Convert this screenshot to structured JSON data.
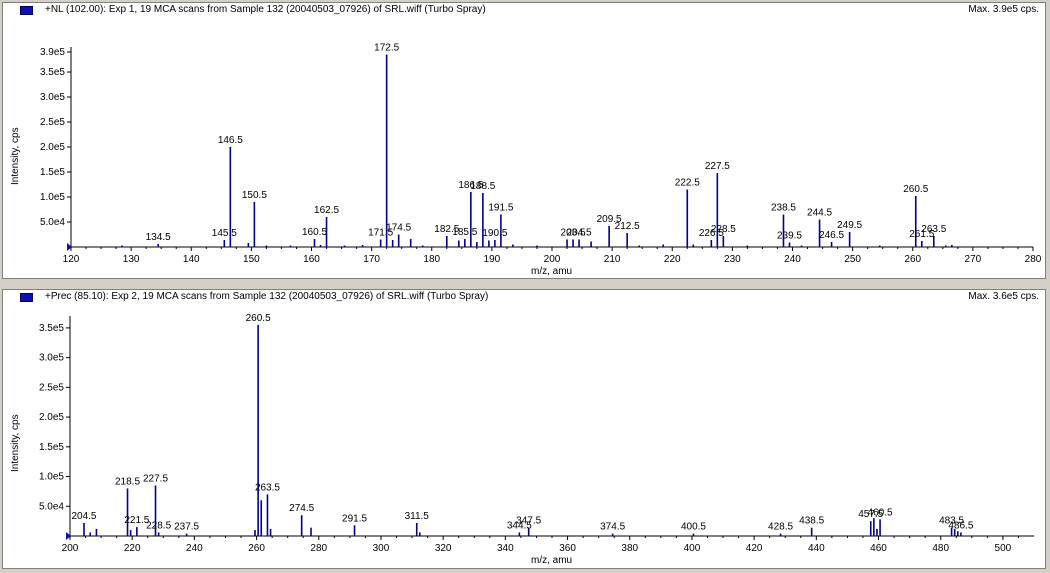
{
  "colors": {
    "bar": "#00008b",
    "axis": "#000000",
    "marker": "#1010b0"
  },
  "chart_data": [
    {
      "type": "bar",
      "title": "+NL (102.00): Exp 1, 19 MCA scans from Sample 132 (20040503_07926) of SRL.wiff (Turbo Spray)",
      "max_label": "Max. 3.9e5 cps.",
      "xlabel": "m/z, amu",
      "ylabel": "Intensity, cps",
      "xlim": [
        120,
        280
      ],
      "ylim": [
        0,
        400000
      ],
      "xticks": [
        120,
        130,
        140,
        150,
        160,
        170,
        180,
        190,
        200,
        210,
        220,
        230,
        240,
        250,
        260,
        270,
        280
      ],
      "yticks": [
        50000,
        100000,
        150000,
        200000,
        250000,
        300000,
        350000,
        390000
      ],
      "ytick_labels": [
        "5.0e4",
        "1.0e5",
        "1.5e5",
        "2.0e5",
        "2.5e5",
        "3.0e5",
        "3.5e5",
        "3.9e5"
      ],
      "peaks": [
        [
          128.5,
          3000
        ],
        [
          134.5,
          6000
        ],
        [
          145.5,
          14000
        ],
        [
          146.5,
          200000
        ],
        [
          149.5,
          8000
        ],
        [
          150.5,
          90000
        ],
        [
          152.5,
          3000
        ],
        [
          156.5,
          3000
        ],
        [
          160.5,
          16000
        ],
        [
          161.5,
          4000
        ],
        [
          162.5,
          60000
        ],
        [
          165.5,
          3000
        ],
        [
          168.5,
          4000
        ],
        [
          171.5,
          15000
        ],
        [
          172.5,
          385000
        ],
        [
          173.5,
          14000
        ],
        [
          174.5,
          25000
        ],
        [
          176.5,
          16000
        ],
        [
          178.5,
          3000
        ],
        [
          182.5,
          22000
        ],
        [
          184.5,
          13000
        ],
        [
          185.5,
          16000
        ],
        [
          186.5,
          110000
        ],
        [
          187.5,
          10000
        ],
        [
          188.5,
          108000
        ],
        [
          189.5,
          13000
        ],
        [
          190.5,
          14000
        ],
        [
          191.5,
          65000
        ],
        [
          193.5,
          5000
        ],
        [
          197.5,
          3000
        ],
        [
          202.5,
          15000
        ],
        [
          203.5,
          15000
        ],
        [
          204.5,
          15000
        ],
        [
          206.5,
          11000
        ],
        [
          209.5,
          42000
        ],
        [
          212.5,
          28000
        ],
        [
          214.5,
          3000
        ],
        [
          218.5,
          5000
        ],
        [
          222.5,
          115000
        ],
        [
          223.5,
          5000
        ],
        [
          226.5,
          14000
        ],
        [
          227.5,
          148000
        ],
        [
          228.5,
          22000
        ],
        [
          232.5,
          3000
        ],
        [
          238.5,
          65000
        ],
        [
          239.5,
          9000
        ],
        [
          241.5,
          3000
        ],
        [
          244.5,
          55000
        ],
        [
          246.5,
          10000
        ],
        [
          249.5,
          30000
        ],
        [
          254.5,
          3000
        ],
        [
          260.5,
          102000
        ],
        [
          261.5,
          12000
        ],
        [
          263.5,
          22000
        ],
        [
          265.5,
          3000
        ],
        [
          266.5,
          4000
        ]
      ],
      "labels": [
        {
          "x": 134.5,
          "text": "134.5"
        },
        {
          "x": 145.5,
          "text": "145.5"
        },
        {
          "x": 146.5,
          "text": "146.5"
        },
        {
          "x": 150.5,
          "text": "150.5"
        },
        {
          "x": 160.5,
          "text": "160.5"
        },
        {
          "x": 162.5,
          "text": "162.5"
        },
        {
          "x": 171.5,
          "text": "171.5"
        },
        {
          "x": 172.5,
          "text": "172.5"
        },
        {
          "x": 174.5,
          "text": "174.5"
        },
        {
          "x": 182.5,
          "text": "182.5"
        },
        {
          "x": 185.5,
          "text": "185.5"
        },
        {
          "x": 186.5,
          "text": "186.5"
        },
        {
          "x": 188.5,
          "text": "188.5"
        },
        {
          "x": 190.5,
          "text": "190.5"
        },
        {
          "x": 191.5,
          "text": "191.5"
        },
        {
          "x": 203.5,
          "text": "203.5"
        },
        {
          "x": 204.5,
          "text": "204.5"
        },
        {
          "x": 209.5,
          "text": "209.5"
        },
        {
          "x": 212.5,
          "text": "212.5"
        },
        {
          "x": 222.5,
          "text": "222.5"
        },
        {
          "x": 226.5,
          "text": "226.5"
        },
        {
          "x": 227.5,
          "text": "227.5"
        },
        {
          "x": 228.5,
          "text": "228.5"
        },
        {
          "x": 238.5,
          "text": "238.5"
        },
        {
          "x": 239.5,
          "text": "239.5"
        },
        {
          "x": 244.5,
          "text": "244.5"
        },
        {
          "x": 246.5,
          "text": "246.5"
        },
        {
          "x": 249.5,
          "text": "249.5"
        },
        {
          "x": 260.5,
          "text": "260.5"
        },
        {
          "x": 261.5,
          "text": "261.5"
        },
        {
          "x": 263.5,
          "text": "263.5"
        }
      ]
    },
    {
      "type": "bar",
      "title": "+Prec (85.10): Exp 2, 19 MCA scans from Sample 132 (20040503_07926) of SRL.wiff (Turbo Spray)",
      "max_label": "Max. 3.6e5 cps.",
      "xlabel": "m/z, amu",
      "ylabel": "Intensity, cps",
      "xlim": [
        200,
        510
      ],
      "ylim": [
        0,
        370000
      ],
      "xticks": [
        200,
        220,
        240,
        260,
        280,
        300,
        320,
        340,
        360,
        380,
        400,
        420,
        440,
        460,
        480,
        500
      ],
      "yticks": [
        50000,
        100000,
        150000,
        200000,
        250000,
        300000,
        350000
      ],
      "ytick_labels": [
        "5.0e4",
        "1.0e5",
        "1.5e5",
        "2.0e5",
        "2.5e5",
        "3.0e5",
        "3.5e5"
      ],
      "peaks": [
        [
          204.5,
          22000
        ],
        [
          206.5,
          6000
        ],
        [
          208.5,
          12000
        ],
        [
          218.5,
          80000
        ],
        [
          219.5,
          10000
        ],
        [
          221.5,
          15000
        ],
        [
          227.5,
          85000
        ],
        [
          228.5,
          6000
        ],
        [
          237.5,
          4000
        ],
        [
          259.5,
          10000
        ],
        [
          260.5,
          355000
        ],
        [
          261.5,
          60000
        ],
        [
          263.5,
          70000
        ],
        [
          264.5,
          12000
        ],
        [
          274.5,
          35000
        ],
        [
          277.5,
          14000
        ],
        [
          291.5,
          18000
        ],
        [
          311.5,
          22000
        ],
        [
          312.5,
          6000
        ],
        [
          344.5,
          6000
        ],
        [
          347.5,
          14000
        ],
        [
          374.5,
          4000
        ],
        [
          400.5,
          4000
        ],
        [
          428.5,
          4000
        ],
        [
          438.5,
          14000
        ],
        [
          457.5,
          25000
        ],
        [
          458.5,
          30000
        ],
        [
          459.5,
          12000
        ],
        [
          460.5,
          28000
        ],
        [
          483.5,
          14000
        ],
        [
          484.5,
          12000
        ],
        [
          485.5,
          8000
        ],
        [
          486.5,
          6000
        ]
      ],
      "labels": [
        {
          "x": 204.5,
          "text": "204.5"
        },
        {
          "x": 218.5,
          "text": "218.5"
        },
        {
          "x": 221.5,
          "text": "221.5"
        },
        {
          "x": 227.5,
          "text": "227.5"
        },
        {
          "x": 228.5,
          "text": "228.5"
        },
        {
          "x": 237.5,
          "text": "237.5"
        },
        {
          "x": 260.5,
          "text": "260.5"
        },
        {
          "x": 263.5,
          "text": "263.5"
        },
        {
          "x": 274.5,
          "text": "274.5"
        },
        {
          "x": 291.5,
          "text": "291.5"
        },
        {
          "x": 311.5,
          "text": "311.5"
        },
        {
          "x": 344.5,
          "text": "344.5"
        },
        {
          "x": 347.5,
          "text": "347.5"
        },
        {
          "x": 374.5,
          "text": "374.5"
        },
        {
          "x": 400.5,
          "text": "400.5"
        },
        {
          "x": 428.5,
          "text": "428.5"
        },
        {
          "x": 438.5,
          "text": "438.5"
        },
        {
          "x": 457.5,
          "text": "457.5"
        },
        {
          "x": 460.5,
          "text": "460.5"
        },
        {
          "x": 483.5,
          "text": "483.5"
        },
        {
          "x": 486.5,
          "text": "486.5"
        }
      ]
    }
  ]
}
